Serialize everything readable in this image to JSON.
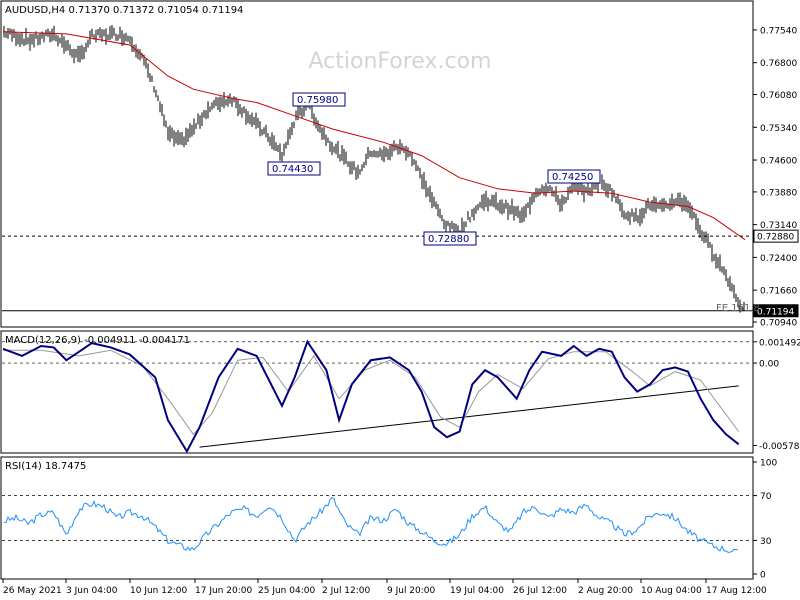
{
  "price_panel": {
    "header": "AUDUSD,H4  0.71370 0.71372 0.71054 0.71194",
    "watermark": "ActionForex.com",
    "y_ticks": [
      "0.77540",
      "0.76800",
      "0.76080",
      "0.75340",
      "0.74600",
      "0.73880",
      "0.73140",
      "0.72400",
      "0.71660",
      "0.70940"
    ],
    "current_price_label": "0.71194",
    "support_line_label": "0.72880",
    "fe_label": "FE 161.8",
    "annotations": [
      {
        "label": "0.75980"
      },
      {
        "label": "0.74430"
      },
      {
        "label": "0.72880"
      },
      {
        "label": "0.74250"
      }
    ]
  },
  "macd_panel": {
    "header": "MACD(12,26,9) -0.004911 -0.004171",
    "y_ticks": [
      "0.001492",
      "0.00",
      "-0.005784"
    ]
  },
  "rsi_panel": {
    "header": "RSI(14) 18.7475",
    "y_ticks": [
      "100",
      "70",
      "30",
      "0"
    ]
  },
  "x_ticks": [
    "26 May 2021",
    "3 Jun 04:00",
    "10 Jun 12:00",
    "17 Jun 20:00",
    "25 Jun 04:00",
    "2 Jul 12:00",
    "9 Jul 20:00",
    "19 Jul 04:00",
    "26 Jul 12:00",
    "2 Aug 20:00",
    "10 Aug 04:00",
    "17 Aug 12:00"
  ],
  "colors": {
    "candle": "#000000",
    "ma": "#cc0000",
    "macd_line": "#000080",
    "signal_line": "#999999",
    "rsi": "#1e90ff",
    "annotation_border": "#000080"
  },
  "chart_data": [
    {
      "type": "candlestick",
      "title": "AUDUSD,H4",
      "ylim": [
        0.7094,
        0.779
      ],
      "horizontal_lines": [
        0.7288,
        0.71194
      ],
      "ohlc_last": {
        "open": 0.7137,
        "high": 0.71372,
        "low": 0.71054,
        "close": 0.71194
      },
      "close_path": [
        [
          0,
          0.775
        ],
        [
          4,
          0.773
        ],
        [
          8,
          0.7745
        ],
        [
          12,
          0.769
        ],
        [
          14,
          0.774
        ],
        [
          18,
          0.7745
        ],
        [
          20,
          0.7735
        ],
        [
          22,
          0.769
        ],
        [
          24,
          0.762
        ],
        [
          26,
          0.752
        ],
        [
          28,
          0.75
        ],
        [
          30,
          0.753
        ],
        [
          32,
          0.757
        ],
        [
          34,
          0.759
        ],
        [
          36,
          0.76
        ],
        [
          38,
          0.757
        ],
        [
          40,
          0.754
        ],
        [
          42,
          0.751
        ],
        [
          44,
          0.747
        ],
        [
          46,
          0.755
        ],
        [
          48,
          0.759
        ],
        [
          50,
          0.753
        ],
        [
          52,
          0.749
        ],
        [
          54,
          0.746
        ],
        [
          56,
          0.743
        ],
        [
          58,
          0.748
        ],
        [
          60,
          0.747
        ],
        [
          62,
          0.749
        ],
        [
          64,
          0.748
        ],
        [
          66,
          0.742
        ],
        [
          68,
          0.736
        ],
        [
          70,
          0.731
        ],
        [
          72,
          0.73
        ],
        [
          74,
          0.734
        ],
        [
          76,
          0.737
        ],
        [
          78,
          0.736
        ],
        [
          80,
          0.735
        ],
        [
          82,
          0.733
        ],
        [
          84,
          0.739
        ],
        [
          86,
          0.74
        ],
        [
          88,
          0.736
        ],
        [
          90,
          0.74
        ],
        [
          92,
          0.739
        ],
        [
          94,
          0.741
        ],
        [
          96,
          0.739
        ],
        [
          98,
          0.734
        ],
        [
          100,
          0.733
        ],
        [
          102,
          0.736
        ],
        [
          104,
          0.735
        ],
        [
          106,
          0.737
        ],
        [
          108,
          0.736
        ],
        [
          110,
          0.73
        ],
        [
          112,
          0.725
        ],
        [
          114,
          0.72
        ],
        [
          116,
          0.714
        ],
        [
          117,
          0.7119
        ]
      ],
      "moving_average": [
        [
          0,
          0.775
        ],
        [
          10,
          0.7745
        ],
        [
          20,
          0.772
        ],
        [
          26,
          0.765
        ],
        [
          30,
          0.762
        ],
        [
          36,
          0.76
        ],
        [
          40,
          0.759
        ],
        [
          46,
          0.756
        ],
        [
          52,
          0.753
        ],
        [
          60,
          0.75
        ],
        [
          66,
          0.747
        ],
        [
          72,
          0.742
        ],
        [
          78,
          0.7395
        ],
        [
          84,
          0.7385
        ],
        [
          90,
          0.739
        ],
        [
          96,
          0.7385
        ],
        [
          102,
          0.7365
        ],
        [
          108,
          0.7355
        ],
        [
          112,
          0.733
        ],
        [
          117,
          0.728
        ]
      ]
    },
    {
      "type": "line",
      "title": "MACD(12,26,9)",
      "ylim": [
        -0.0061,
        0.0019
      ],
      "last": {
        "macd": -0.004911,
        "signal": -0.004171
      },
      "series": [
        {
          "name": "MACD",
          "values": [
            [
              0,
              0.001
            ],
            [
              3,
              0.0005
            ],
            [
              6,
              0.0012
            ],
            [
              8,
              0.0011
            ],
            [
              10,
              0.0002
            ],
            [
              12,
              0.0008
            ],
            [
              14,
              0.0014
            ],
            [
              17,
              0.0011
            ],
            [
              20,
              0.0006
            ],
            [
              24,
              -0.001
            ],
            [
              26,
              -0.004
            ],
            [
              29,
              -0.0062
            ],
            [
              31,
              -0.0045
            ],
            [
              34,
              -0.001
            ],
            [
              37,
              0.001
            ],
            [
              40,
              0.0005
            ],
            [
              44,
              -0.003
            ],
            [
              46,
              -0.001
            ],
            [
              48,
              0.0015
            ],
            [
              51,
              -0.0005
            ],
            [
              53,
              -0.004
            ],
            [
              55,
              -0.0015
            ],
            [
              58,
              0.0002
            ],
            [
              61,
              0.0004
            ],
            [
              64,
              -0.0005
            ],
            [
              66,
              -0.002
            ],
            [
              68,
              -0.0045
            ],
            [
              70,
              -0.0052
            ],
            [
              72,
              -0.0048
            ],
            [
              74,
              -0.0015
            ],
            [
              76,
              -0.0005
            ],
            [
              78,
              -0.001
            ],
            [
              81,
              -0.0025
            ],
            [
              83,
              -0.0005
            ],
            [
              85,
              0.0008
            ],
            [
              88,
              0.0005
            ],
            [
              90,
              0.0012
            ],
            [
              92,
              0.0005
            ],
            [
              94,
              0.001
            ],
            [
              96,
              0.0008
            ],
            [
              98,
              -0.001
            ],
            [
              100,
              -0.002
            ],
            [
              102,
              -0.0015
            ],
            [
              104,
              -0.0005
            ],
            [
              106,
              -0.0003
            ],
            [
              108,
              -0.0006
            ],
            [
              110,
              -0.0025
            ],
            [
              112,
              -0.004
            ],
            [
              114,
              -0.005
            ],
            [
              116,
              -0.0057
            ]
          ]
        },
        {
          "name": "Signal",
          "values": [
            [
              0,
              0.0009
            ],
            [
              6,
              0.0009
            ],
            [
              12,
              0.0005
            ],
            [
              17,
              0.0009
            ],
            [
              22,
              -0.0002
            ],
            [
              26,
              -0.0025
            ],
            [
              30,
              -0.005
            ],
            [
              33,
              -0.0035
            ],
            [
              37,
              0.0002
            ],
            [
              41,
              0.0004
            ],
            [
              45,
              -0.002
            ],
            [
              49,
              0.0005
            ],
            [
              53,
              -0.0025
            ],
            [
              57,
              -0.0005
            ],
            [
              61,
              0.0002
            ],
            [
              65,
              -0.001
            ],
            [
              69,
              -0.0038
            ],
            [
              72,
              -0.0045
            ],
            [
              75,
              -0.002
            ],
            [
              78,
              -0.0008
            ],
            [
              82,
              -0.0018
            ],
            [
              86,
              0.0003
            ],
            [
              90,
              0.0008
            ],
            [
              95,
              0.0008
            ],
            [
              99,
              -0.0005
            ],
            [
              102,
              -0.0016
            ],
            [
              106,
              -0.0006
            ],
            [
              110,
              -0.0012
            ],
            [
              113,
              -0.003
            ],
            [
              116,
              -0.0048
            ]
          ]
        }
      ],
      "trendline": [
        [
          31,
          -0.0059
        ],
        [
          116,
          -0.0016
        ]
      ],
      "reference_lines": [
        0.001492,
        0.0
      ]
    },
    {
      "type": "line",
      "title": "RSI(14)",
      "ylim": [
        0,
        100
      ],
      "last": 18.7475,
      "reference_lines": [
        70,
        30
      ],
      "series": [
        {
          "name": "RSI",
          "values": [
            [
              0,
              47
            ],
            [
              2,
              50
            ],
            [
              4,
              45
            ],
            [
              6,
              53
            ],
            [
              8,
              55
            ],
            [
              10,
              35
            ],
            [
              12,
              58
            ],
            [
              14,
              63
            ],
            [
              16,
              60
            ],
            [
              18,
              50
            ],
            [
              20,
              55
            ],
            [
              22,
              52
            ],
            [
              24,
              42
            ],
            [
              26,
              30
            ],
            [
              28,
              25
            ],
            [
              30,
              22
            ],
            [
              32,
              35
            ],
            [
              34,
              45
            ],
            [
              36,
              55
            ],
            [
              38,
              58
            ],
            [
              40,
              52
            ],
            [
              42,
              62
            ],
            [
              44,
              50
            ],
            [
              46,
              30
            ],
            [
              48,
              45
            ],
            [
              50,
              55
            ],
            [
              52,
              68
            ],
            [
              54,
              45
            ],
            [
              56,
              35
            ],
            [
              58,
              50
            ],
            [
              60,
              48
            ],
            [
              62,
              58
            ],
            [
              64,
              45
            ],
            [
              66,
              38
            ],
            [
              68,
              30
            ],
            [
              70,
              27
            ],
            [
              72,
              35
            ],
            [
              74,
              52
            ],
            [
              76,
              60
            ],
            [
              78,
              45
            ],
            [
              80,
              38
            ],
            [
              82,
              55
            ],
            [
              84,
              60
            ],
            [
              86,
              50
            ],
            [
              88,
              58
            ],
            [
              90,
              55
            ],
            [
              92,
              62
            ],
            [
              94,
              50
            ],
            [
              96,
              45
            ],
            [
              98,
              35
            ],
            [
              100,
              40
            ],
            [
              102,
              52
            ],
            [
              104,
              55
            ],
            [
              106,
              50
            ],
            [
              108,
              38
            ],
            [
              110,
              30
            ],
            [
              112,
              25
            ],
            [
              114,
              22
            ],
            [
              116,
              18.7
            ]
          ]
        }
      ]
    }
  ]
}
